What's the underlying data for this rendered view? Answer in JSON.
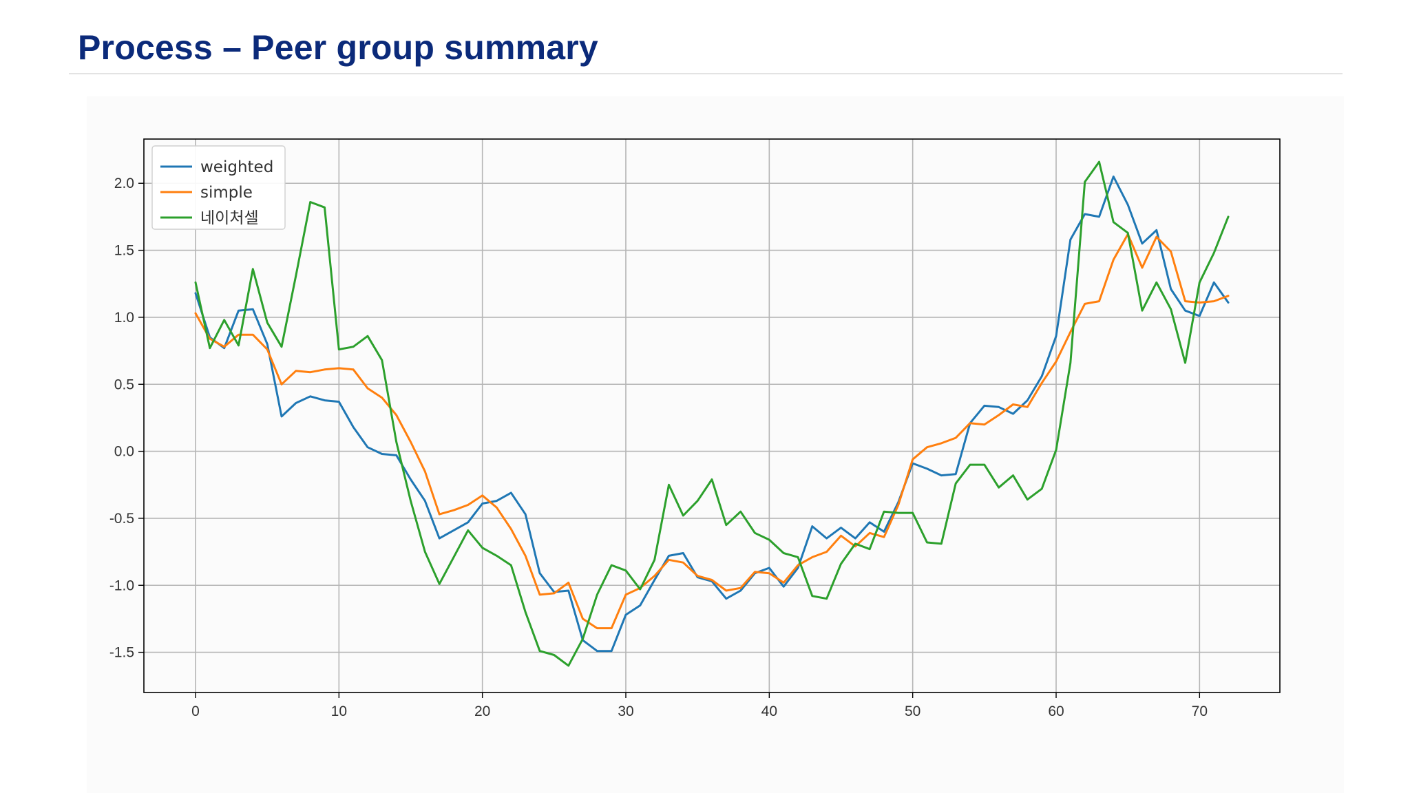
{
  "slide": {
    "title": "Process – Peer group summary"
  },
  "chart_data": {
    "type": "line",
    "xlim": [
      -3.6,
      75.6
    ],
    "ylim": [
      -1.8,
      2.33
    ],
    "x_ticks": [
      0,
      10,
      20,
      30,
      40,
      50,
      60,
      70
    ],
    "y_ticks": [
      2.0,
      1.5,
      1.0,
      0.5,
      0.0,
      -0.5,
      -1.0,
      -1.5
    ],
    "y_tick_labels": [
      "2.0",
      "1.5",
      "1.0",
      "0.5",
      "0.0",
      "-0.5",
      "-1.0",
      "-1.5"
    ],
    "grid": true,
    "legend_position": "top-left",
    "series": [
      {
        "name": "weighted",
        "color": "#1f77b4",
        "values": [
          1.18,
          0.85,
          0.77,
          1.05,
          1.06,
          0.8,
          0.26,
          0.36,
          0.41,
          0.38,
          0.37,
          0.18,
          0.03,
          -0.02,
          -0.03,
          -0.21,
          -0.37,
          -0.65,
          -0.59,
          -0.53,
          -0.39,
          -0.37,
          -0.31,
          -0.47,
          -0.91,
          -1.05,
          -1.04,
          -1.41,
          -1.49,
          -1.49,
          -1.22,
          -1.15,
          -0.96,
          -0.78,
          -0.76,
          -0.94,
          -0.97,
          -1.1,
          -1.04,
          -0.91,
          -0.87,
          -1.01,
          -0.87,
          -0.56,
          -0.65,
          -0.57,
          -0.65,
          -0.53,
          -0.6,
          -0.38,
          -0.09,
          -0.13,
          -0.18,
          -0.17,
          0.21,
          0.34,
          0.33,
          0.28,
          0.38,
          0.56,
          0.86,
          1.58,
          1.77,
          1.75,
          2.05,
          1.84,
          1.55,
          1.65,
          1.21,
          1.05,
          1.01,
          1.26,
          1.11
        ]
      },
      {
        "name": "simple",
        "color": "#ff7f0e",
        "values": [
          1.03,
          0.84,
          0.78,
          0.87,
          0.87,
          0.76,
          0.5,
          0.6,
          0.59,
          0.61,
          0.62,
          0.61,
          0.47,
          0.4,
          0.27,
          0.07,
          -0.15,
          -0.47,
          -0.44,
          -0.4,
          -0.33,
          -0.42,
          -0.58,
          -0.78,
          -1.07,
          -1.06,
          -0.98,
          -1.25,
          -1.32,
          -1.32,
          -1.07,
          -1.02,
          -0.93,
          -0.81,
          -0.83,
          -0.93,
          -0.96,
          -1.04,
          -1.02,
          -0.9,
          -0.91,
          -0.98,
          -0.85,
          -0.79,
          -0.75,
          -0.63,
          -0.71,
          -0.61,
          -0.64,
          -0.4,
          -0.06,
          0.03,
          0.06,
          0.1,
          0.21,
          0.2,
          0.27,
          0.35,
          0.33,
          0.51,
          0.67,
          0.89,
          1.1,
          1.12,
          1.43,
          1.62,
          1.37,
          1.6,
          1.49,
          1.12,
          1.11,
          1.12,
          1.16
        ]
      },
      {
        "name": "네이처셀",
        "color": "#2ca02c",
        "values": [
          1.26,
          0.77,
          0.98,
          0.79,
          1.36,
          0.96,
          0.78,
          1.31,
          1.86,
          1.82,
          0.76,
          0.78,
          0.86,
          0.68,
          0.07,
          -0.37,
          -0.75,
          -0.99,
          -0.79,
          -0.59,
          -0.72,
          -0.78,
          -0.85,
          -1.2,
          -1.49,
          -1.52,
          -1.6,
          -1.4,
          -1.07,
          -0.85,
          -0.89,
          -1.03,
          -0.81,
          -0.25,
          -0.48,
          -0.37,
          -0.21,
          -0.55,
          -0.45,
          -0.61,
          -0.66,
          -0.76,
          -0.79,
          -1.08,
          -1.1,
          -0.84,
          -0.69,
          -0.73,
          -0.45,
          -0.46,
          -0.46,
          -0.68,
          -0.69,
          -0.24,
          -0.1,
          -0.1,
          -0.27,
          -0.18,
          -0.36,
          -0.28,
          0.01,
          0.66,
          2.01,
          2.16,
          1.71,
          1.63,
          1.05,
          1.26,
          1.06,
          0.66,
          1.26,
          1.48,
          1.75
        ]
      }
    ]
  }
}
